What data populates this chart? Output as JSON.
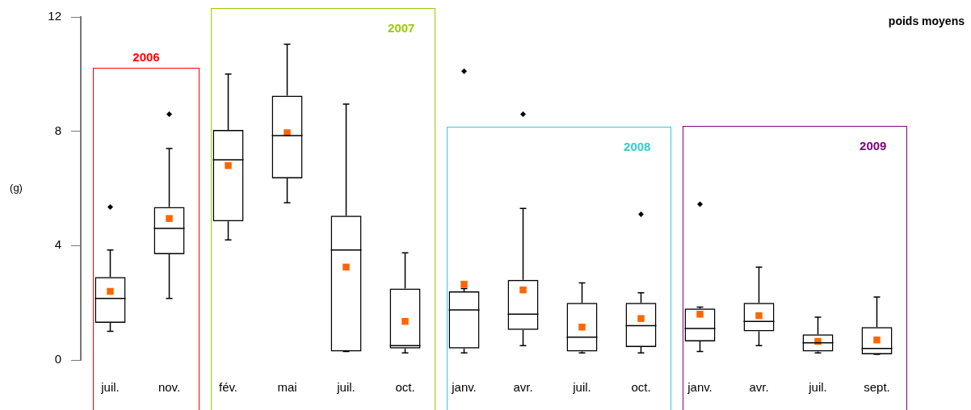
{
  "chart_data": {
    "type": "box",
    "title": "poids moyens",
    "ylabel": "(g)",
    "categories": [
      "juil.",
      "nov.",
      "fév.",
      "mai",
      "juil.",
      "oct.",
      "janv.",
      "avr.",
      "juil.",
      "oct.",
      "janv.",
      "avr.",
      "juil.",
      "sept."
    ],
    "ylim": [
      0,
      12
    ],
    "yticks": [
      0,
      4,
      8,
      12
    ],
    "grid": false,
    "legend": false,
    "series": [
      {
        "color": "#000000",
        "boxes": [
          {
            "low": 1.0,
            "q1": 1.3,
            "median": 2.15,
            "q3": 2.9,
            "high": 3.85,
            "mean": 2.4,
            "outliers": [
              5.35
            ]
          },
          {
            "low": 2.15,
            "q1": 3.7,
            "median": 4.6,
            "q3": 5.35,
            "high": 7.4,
            "mean": 4.95,
            "outliers": [
              8.6
            ]
          },
          {
            "low": 4.2,
            "q1": 4.85,
            "median": 7.0,
            "q3": 8.05,
            "high": 10.0,
            "mean": 6.8
          },
          {
            "low": 5.5,
            "q1": 6.35,
            "median": 7.85,
            "q3": 9.25,
            "high": 11.05,
            "mean": 7.95
          },
          {
            "low": 0.3,
            "q1": 0.3,
            "median": 3.85,
            "q3": 5.05,
            "high": 8.95,
            "mean": 3.25
          },
          {
            "low": 0.25,
            "q1": 0.4,
            "median": 0.5,
            "q3": 2.5,
            "high": 3.75,
            "mean": 1.35
          },
          {
            "low": 0.25,
            "q1": 0.4,
            "median": 1.75,
            "q3": 2.4,
            "high": 2.5,
            "mean": 2.65,
            "outliers": [
              10.1
            ]
          },
          {
            "low": 0.5,
            "q1": 1.05,
            "median": 1.6,
            "q3": 2.8,
            "high": 5.3,
            "mean": 2.45,
            "outliers": [
              8.6
            ]
          },
          {
            "low": 0.25,
            "q1": 0.3,
            "median": 0.8,
            "q3": 2.0,
            "high": 2.7,
            "mean": 1.15
          },
          {
            "low": 0.25,
            "q1": 0.45,
            "median": 1.2,
            "q3": 2.0,
            "high": 2.35,
            "mean": 1.45,
            "outliers": [
              5.1
            ]
          },
          {
            "low": 0.3,
            "q1": 0.65,
            "median": 1.1,
            "q3": 1.8,
            "high": 1.85,
            "mean": 1.6,
            "outliers": [
              5.45
            ]
          },
          {
            "low": 0.5,
            "q1": 1.0,
            "median": 1.35,
            "q3": 2.0,
            "high": 3.25,
            "mean": 1.55
          },
          {
            "low": 0.25,
            "q1": 0.3,
            "median": 0.6,
            "q3": 0.9,
            "high": 1.5,
            "mean": 0.65
          },
          {
            "low": 0.2,
            "q1": 0.2,
            "median": 0.4,
            "q3": 1.15,
            "high": 2.2,
            "mean": 0.7
          }
        ]
      }
    ],
    "annotations": [
      "2006",
      "2007",
      "2008",
      "2009"
    ]
  }
}
